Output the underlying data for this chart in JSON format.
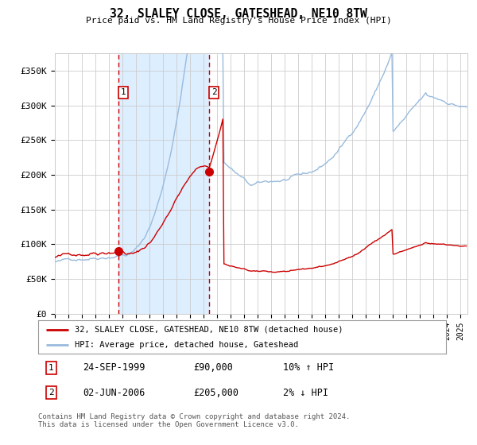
{
  "title": "32, SLALEY CLOSE, GATESHEAD, NE10 8TW",
  "subtitle": "Price paid vs. HM Land Registry's House Price Index (HPI)",
  "legend_label_red": "32, SLALEY CLOSE, GATESHEAD, NE10 8TW (detached house)",
  "legend_label_blue": "HPI: Average price, detached house, Gateshead",
  "transaction1": {
    "label": "1",
    "date": "24-SEP-1999",
    "price": 90000,
    "hpi_diff": "10% ↑ HPI"
  },
  "transaction2": {
    "label": "2",
    "date": "02-JUN-2006",
    "price": 205000,
    "hpi_diff": "2% ↓ HPI"
  },
  "footnote": "Contains HM Land Registry data © Crown copyright and database right 2024.\nThis data is licensed under the Open Government Licence v3.0.",
  "ylim": [
    0,
    375000
  ],
  "background_color": "#ffffff",
  "plot_bg_color": "#ffffff",
  "shade_color": "#ddeeff",
  "grid_color": "#cccccc",
  "red_line_color": "#cc0000",
  "blue_line_color": "#99bbdd",
  "dashed_vline_color": "#cc0000",
  "marker_color": "#cc0000",
  "yticks": [
    0,
    50000,
    100000,
    150000,
    200000,
    250000,
    300000,
    350000
  ],
  "ytick_labels": [
    "£0",
    "£50K",
    "£100K",
    "£150K",
    "£200K",
    "£250K",
    "£300K",
    "£350K"
  ],
  "t1_year": 1999.708,
  "t2_year": 2006.417,
  "t1_price": 90000,
  "t2_price": 205000
}
